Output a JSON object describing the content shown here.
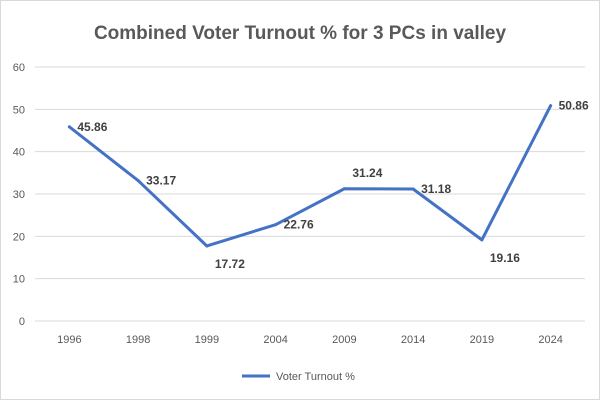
{
  "chart_data": {
    "type": "line",
    "title": "Combined Voter Turnout % for 3 PCs in valley",
    "categories": [
      "1996",
      "1998",
      "1999",
      "2004",
      "2009",
      "2014",
      "2019",
      "2024"
    ],
    "series": [
      {
        "name": "Voter Turnout %",
        "values": [
          45.86,
          33.17,
          17.72,
          22.76,
          31.24,
          31.18,
          19.16,
          50.86
        ],
        "data_labels": [
          "45.86",
          "33.17",
          "17.72",
          "22.76",
          "31.24",
          "31.18",
          "19.16",
          "50.86"
        ],
        "color": "#4472c4"
      }
    ],
    "y_ticks": [
      "0",
      "10",
      "20",
      "30",
      "40",
      "50",
      "60"
    ],
    "ylim": [
      0,
      60
    ],
    "xlabel": "",
    "ylabel": "",
    "grid": true,
    "legend_position": "bottom"
  }
}
